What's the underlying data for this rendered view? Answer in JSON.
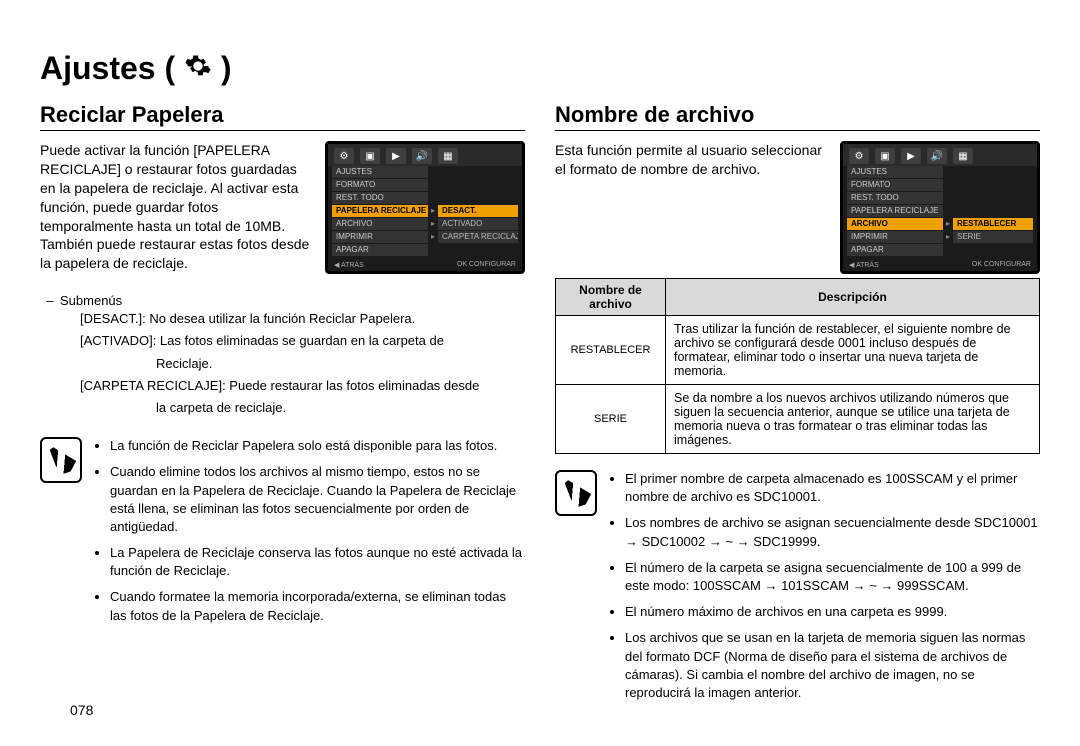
{
  "page": {
    "title": "Ajustes",
    "number": "078"
  },
  "colors": {
    "text": "#000000",
    "bg": "#ffffff",
    "screen_bg": "#1b1b1b",
    "menu_bg": "#333333",
    "highlight": "#f0a000",
    "table_header_bg": "#d9d9d9"
  },
  "left": {
    "heading": "Reciclar Papelera",
    "intro": "Puede activar la función [PAPELERA RECICLAJE] o restaurar fotos guardadas en la papelera de reciclaje. Al activar esta función, puede guardar fotos temporalmente hasta un total de 10MB. También puede restaurar estas fotos desde la papelera de reciclaje.",
    "screen": {
      "icons": [
        "gear",
        "cam",
        "play",
        "sound",
        "disp"
      ],
      "rows": [
        {
          "label": "AJUSTES",
          "sel": false,
          "sub": ""
        },
        {
          "label": "FORMATO",
          "sel": false,
          "sub": ""
        },
        {
          "label": "REST. TODO",
          "sel": false,
          "sub": ""
        },
        {
          "label": "PAPELERA RECICLAJE",
          "sel": true,
          "sub": "DESACT.",
          "subsel": true
        },
        {
          "label": "ARCHIVO",
          "sel": false,
          "sub": "ACTIVADO"
        },
        {
          "label": "IMPRIMIR",
          "sel": false,
          "sub": "CARPETA RECICLAJE"
        },
        {
          "label": "APAGAR",
          "sel": false,
          "sub": ""
        }
      ],
      "footer_left": "◀  ATRÁS",
      "footer_right": "OK  CONFIGURAR"
    },
    "submenus_label": "Submenús",
    "sub_items": [
      {
        "head": "[DESACT.]: No desea utilizar la función Reciclar Papelera."
      },
      {
        "head": "[ACTIVADO]: Las fotos eliminadas se guardan en la carpeta de",
        "cont": "Reciclaje."
      },
      {
        "head": "[CARPETA RECICLAJE]: Puede restaurar las fotos eliminadas desde",
        "cont": "la carpeta de reciclaje."
      }
    ],
    "info": [
      "La función de Reciclar Papelera solo está disponible para las fotos.",
      "Cuando elimine todos los archivos al mismo tiempo, estos no se guardan en la Papelera de Reciclaje. Cuando la Papelera de Reciclaje está llena, se eliminan las fotos secuencialmente por orden de antigüedad.",
      "La Papelera de Reciclaje conserva las fotos aunque no esté activada la función de Reciclaje.",
      "Cuando formatee la memoria incorporada/externa, se eliminan todas las fotos de la Papelera de Reciclaje."
    ]
  },
  "right": {
    "heading": "Nombre de archivo",
    "intro": "Esta función permite al usuario seleccionar el formato de nombre de archivo.",
    "screen": {
      "icons": [
        "gear",
        "cam",
        "play",
        "sound",
        "disp"
      ],
      "rows": [
        {
          "label": "AJUSTES",
          "sel": false,
          "sub": ""
        },
        {
          "label": "FORMATO",
          "sel": false,
          "sub": ""
        },
        {
          "label": "REST. TODO",
          "sel": false,
          "sub": ""
        },
        {
          "label": "PAPELERA RECICLAJE",
          "sel": false,
          "sub": ""
        },
        {
          "label": "ARCHIVO",
          "sel": true,
          "sub": "RESTABLECER",
          "subsel": true
        },
        {
          "label": "IMPRIMIR",
          "sel": false,
          "sub": "SERIE"
        },
        {
          "label": "APAGAR",
          "sel": false,
          "sub": ""
        }
      ],
      "footer_left": "◀  ATRÁS",
      "footer_right": "OK  CONFIGURAR"
    },
    "table": {
      "col1": "Nombre de archivo",
      "col2": "Descripción",
      "rows": [
        {
          "name": "RESTABLECER",
          "desc": "Tras utilizar la función de restablecer, el siguiente nombre de archivo se configurará desde 0001 incluso después de formatear, eliminar todo o insertar una nueva tarjeta de memoria."
        },
        {
          "name": "SERIE",
          "desc": "Se da nombre a los nuevos archivos utilizando números que siguen la secuencia anterior, aunque se utilice una tarjeta de memoria nueva o tras formatear o tras eliminar todas las imágenes."
        }
      ]
    },
    "info": [
      "El primer nombre de carpeta almacenado es 100SSCAM y el primer nombre de archivo es SDC10001.",
      "Los nombres de archivo se asignan secuencialmente desde SDC10001 → SDC10002 → ~ → SDC19999.",
      "El número de la carpeta se asigna secuencialmente de 100 a 999 de este modo: 100SSCAM → 101SSCAM → ~ → 999SSCAM.",
      "El número máximo de archivos en una carpeta es 9999.",
      "Los archivos que se usan en la tarjeta de memoria siguen las normas del formato DCF (Norma de diseño para el sistema de archivos de cámaras). Si cambia el nombre del archivo de imagen, no se reproducirá la imagen anterior."
    ]
  }
}
